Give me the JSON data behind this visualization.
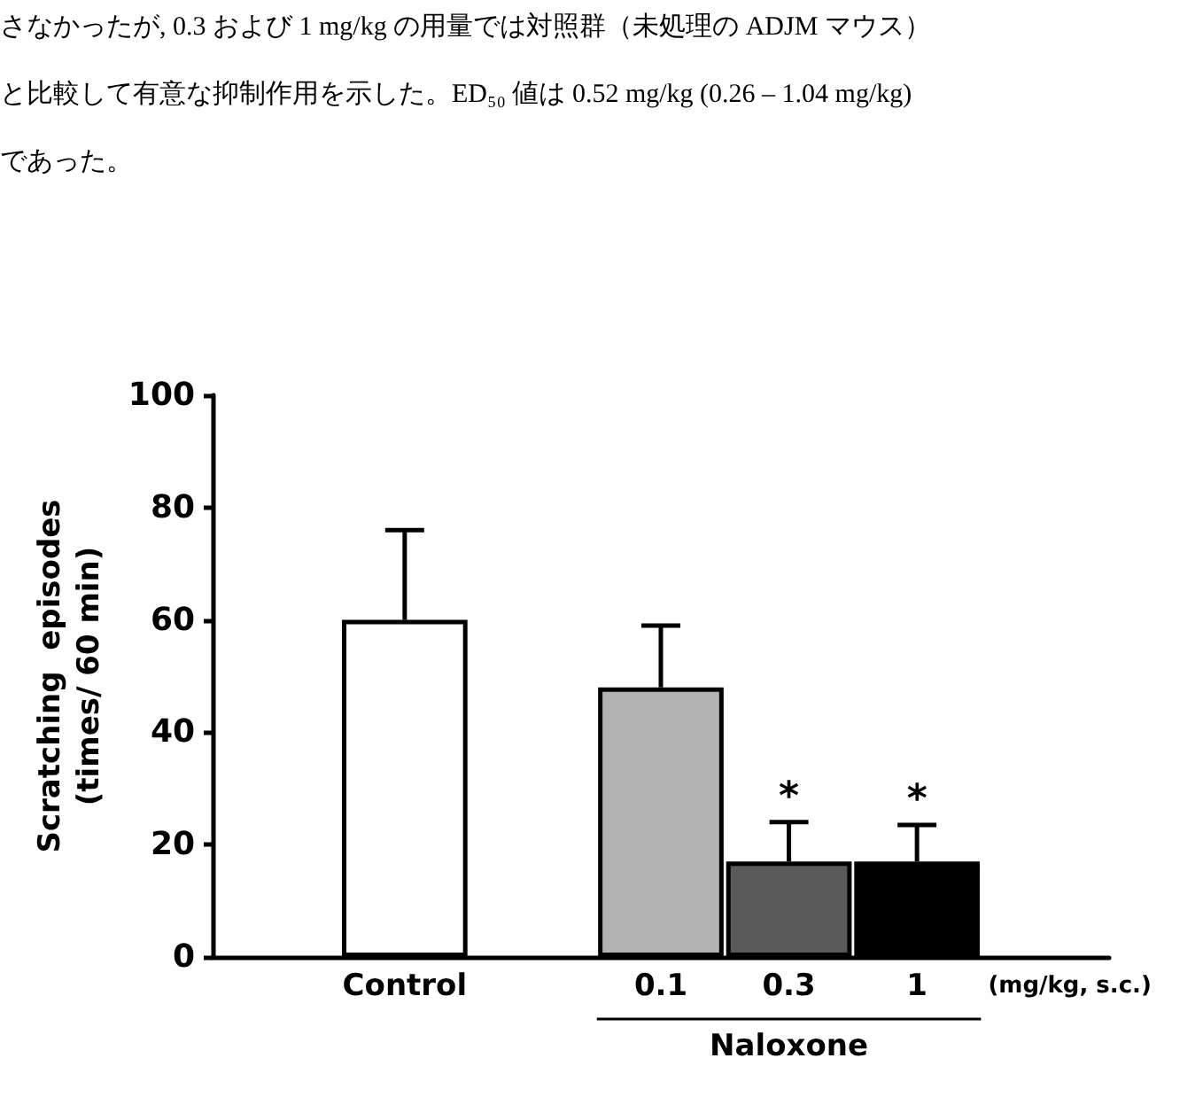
{
  "chart_data": {
    "type": "bar",
    "ylabel": "Scratching  episodes\n(times/ 60 min)",
    "xlabel": "Naloxone",
    "categories": [
      null,
      "Control",
      null,
      "0.1",
      "0.3",
      "1",
      null
    ],
    "values": [
      null,
      60,
      null,
      48,
      17,
      17,
      null
    ],
    "errors": [
      null,
      16,
      null,
      11,
      7,
      6.5,
      null
    ],
    "colors": [
      "#ffffff",
      "#ffffff",
      "#ffffff",
      "#b3b3b3",
      "#595959",
      "#000000",
      "#ffffff"
    ],
    "ylim": [
      0,
      100
    ],
    "yticks": [
      0,
      20,
      40,
      60,
      80,
      100
    ],
    "grid": false,
    "annotations": [
      "さなかったが, 0.3 および 1 mg/kg の用量では対照群（未処理の ADJM マウス）",
      "と比較して有意な抑制作用を示した。ED₅₀ 値は 0.52 mg/kg (0.26 – 1.04 mg/kg)",
      "であった。",
      "(mg/kg, s.c.)",
      {
        "text": "*",
        "x": "0.3",
        "y": 24
      },
      {
        "text": "*",
        "x": "1",
        "y": 23.5
      }
    ]
  }
}
